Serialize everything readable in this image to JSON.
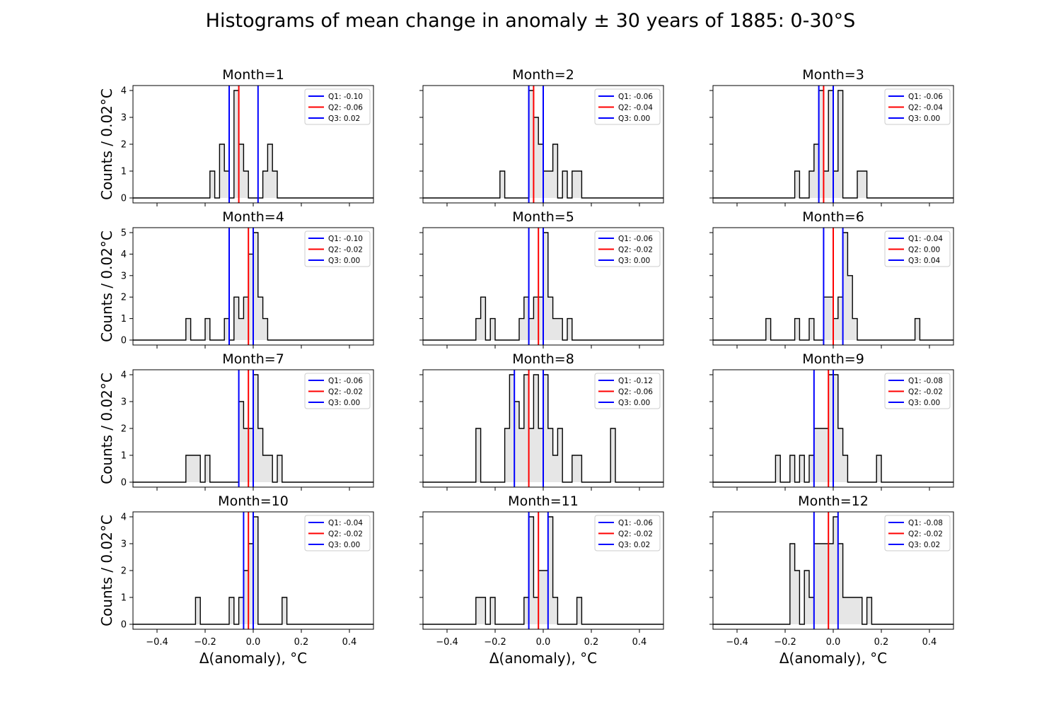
{
  "figure": {
    "title": "Histograms of mean change in anomaly ± 30 years of 1885: 0-30°S",
    "ylabel": "Counts / 0.02°C",
    "xlabel": "Δ(anomaly), °C"
  },
  "colors": {
    "quartile_outer": "#0000ff",
    "median": "#ff0000",
    "fill": "#e6e6e6",
    "step": "#000000"
  },
  "chart_data": [
    {
      "type": "histogram",
      "title": "Month=1",
      "xlim": [
        -0.5,
        0.5
      ],
      "ylim": [
        0,
        4
      ],
      "yticks": [
        0,
        1,
        2,
        3,
        4
      ],
      "xticks": [
        -0.4,
        -0.2,
        0.0,
        0.2,
        0.4
      ],
      "bin_width": 0.02,
      "bins": [
        [
          -0.18,
          1
        ],
        [
          -0.14,
          2
        ],
        [
          -0.12,
          1
        ],
        [
          -0.08,
          4
        ],
        [
          -0.06,
          2
        ],
        [
          -0.04,
          1
        ],
        [
          0.04,
          1
        ],
        [
          0.06,
          2
        ],
        [
          0.08,
          1
        ]
      ],
      "quartiles": {
        "Q1": -0.1,
        "Q2": -0.06,
        "Q3": 0.02
      },
      "legend": [
        "Q1: -0.10",
        "Q2: -0.06",
        "Q3: 0.02"
      ]
    },
    {
      "type": "histogram",
      "title": "Month=2",
      "xlim": [
        -0.5,
        0.5
      ],
      "ylim": [
        0,
        4
      ],
      "yticks": [
        0,
        1,
        2,
        3,
        4
      ],
      "xticks": [
        -0.4,
        -0.2,
        0.0,
        0.2,
        0.4
      ],
      "bin_width": 0.02,
      "bins": [
        [
          -0.18,
          1
        ],
        [
          -0.06,
          4
        ],
        [
          -0.04,
          3
        ],
        [
          -0.02,
          2
        ],
        [
          0.0,
          1
        ],
        [
          0.02,
          1
        ],
        [
          0.04,
          2
        ],
        [
          0.08,
          1
        ],
        [
          0.12,
          1
        ],
        [
          0.14,
          1
        ]
      ],
      "quartiles": {
        "Q1": -0.06,
        "Q2": -0.04,
        "Q3": 0.0
      },
      "legend": [
        "Q1: -0.06",
        "Q2: -0.04",
        "Q3: 0.00"
      ]
    },
    {
      "type": "histogram",
      "title": "Month=3",
      "xlim": [
        -0.5,
        0.5
      ],
      "ylim": [
        0,
        4
      ],
      "yticks": [
        0,
        1,
        2,
        3,
        4
      ],
      "xticks": [
        -0.4,
        -0.2,
        0.0,
        0.2,
        0.4
      ],
      "bin_width": 0.02,
      "bins": [
        [
          -0.16,
          1
        ],
        [
          -0.1,
          1
        ],
        [
          -0.08,
          2
        ],
        [
          -0.06,
          4
        ],
        [
          -0.04,
          1
        ],
        [
          -0.02,
          4
        ],
        [
          0.0,
          1
        ],
        [
          0.02,
          4
        ],
        [
          0.1,
          1
        ],
        [
          0.12,
          1
        ]
      ],
      "quartiles": {
        "Q1": -0.06,
        "Q2": -0.04,
        "Q3": 0.0
      },
      "legend": [
        "Q1: -0.06",
        "Q2: -0.04",
        "Q3: 0.00"
      ]
    },
    {
      "type": "histogram",
      "title": "Month=4",
      "xlim": [
        -0.5,
        0.5
      ],
      "ylim": [
        0,
        5
      ],
      "yticks": [
        0,
        1,
        2,
        3,
        4,
        5
      ],
      "xticks": [
        -0.4,
        -0.2,
        0.0,
        0.2,
        0.4
      ],
      "bin_width": 0.02,
      "bins": [
        [
          -0.28,
          1
        ],
        [
          -0.2,
          1
        ],
        [
          -0.12,
          1
        ],
        [
          -0.08,
          2
        ],
        [
          -0.06,
          1
        ],
        [
          -0.04,
          2
        ],
        [
          -0.02,
          4
        ],
        [
          0.0,
          5
        ],
        [
          0.02,
          2
        ],
        [
          0.04,
          1
        ]
      ],
      "quartiles": {
        "Q1": -0.1,
        "Q2": -0.02,
        "Q3": 0.0
      },
      "legend": [
        "Q1: -0.10",
        "Q2: -0.02",
        "Q3: 0.00"
      ]
    },
    {
      "type": "histogram",
      "title": "Month=5",
      "xlim": [
        -0.5,
        0.5
      ],
      "ylim": [
        0,
        5
      ],
      "yticks": [
        0,
        1,
        2,
        3,
        4,
        5
      ],
      "xticks": [
        -0.4,
        -0.2,
        0.0,
        0.2,
        0.4
      ],
      "bin_width": 0.02,
      "bins": [
        [
          -0.28,
          1
        ],
        [
          -0.26,
          2
        ],
        [
          -0.22,
          1
        ],
        [
          -0.1,
          1
        ],
        [
          -0.08,
          2
        ],
        [
          -0.06,
          1
        ],
        [
          -0.04,
          2
        ],
        [
          -0.02,
          2
        ],
        [
          0.0,
          5
        ],
        [
          0.02,
          2
        ],
        [
          0.04,
          1
        ],
        [
          0.06,
          1
        ],
        [
          0.1,
          1
        ]
      ],
      "quartiles": {
        "Q1": -0.06,
        "Q2": -0.02,
        "Q3": 0.0
      },
      "legend": [
        "Q1: -0.06",
        "Q2: -0.02",
        "Q3: 0.00"
      ]
    },
    {
      "type": "histogram",
      "title": "Month=6",
      "xlim": [
        -0.5,
        0.5
      ],
      "ylim": [
        0,
        5
      ],
      "yticks": [
        0,
        1,
        2,
        3,
        4,
        5
      ],
      "xticks": [
        -0.4,
        -0.2,
        0.0,
        0.2,
        0.4
      ],
      "bin_width": 0.02,
      "bins": [
        [
          -0.28,
          1
        ],
        [
          -0.16,
          1
        ],
        [
          -0.1,
          1
        ],
        [
          -0.04,
          2
        ],
        [
          -0.02,
          2
        ],
        [
          0.0,
          1
        ],
        [
          0.02,
          2
        ],
        [
          0.04,
          5
        ],
        [
          0.06,
          3
        ],
        [
          0.08,
          1
        ],
        [
          0.34,
          1
        ]
      ],
      "quartiles": {
        "Q1": -0.04,
        "Q2": 0.0,
        "Q3": 0.04
      },
      "legend": [
        "Q1: -0.04",
        "Q2: 0.00",
        "Q3: 0.04"
      ]
    },
    {
      "type": "histogram",
      "title": "Month=7",
      "xlim": [
        -0.5,
        0.5
      ],
      "ylim": [
        0,
        4
      ],
      "yticks": [
        0,
        1,
        2,
        3,
        4
      ],
      "xticks": [
        -0.4,
        -0.2,
        0.0,
        0.2,
        0.4
      ],
      "bin_width": 0.02,
      "bins": [
        [
          -0.28,
          1
        ],
        [
          -0.26,
          1
        ],
        [
          -0.24,
          1
        ],
        [
          -0.2,
          1
        ],
        [
          -0.06,
          3
        ],
        [
          -0.04,
          2
        ],
        [
          -0.02,
          2
        ],
        [
          0.0,
          4
        ],
        [
          0.02,
          2
        ],
        [
          0.04,
          1
        ],
        [
          0.06,
          1
        ],
        [
          0.1,
          1
        ]
      ],
      "quartiles": {
        "Q1": -0.06,
        "Q2": -0.02,
        "Q3": 0.0
      },
      "legend": [
        "Q1: -0.06",
        "Q2: -0.02",
        "Q3: 0.00"
      ]
    },
    {
      "type": "histogram",
      "title": "Month=8",
      "xlim": [
        -0.5,
        0.5
      ],
      "ylim": [
        0,
        4
      ],
      "yticks": [
        0,
        1,
        2,
        3,
        4
      ],
      "xticks": [
        -0.4,
        -0.2,
        0.0,
        0.2,
        0.4
      ],
      "bin_width": 0.02,
      "bins": [
        [
          -0.28,
          2
        ],
        [
          -0.16,
          2
        ],
        [
          -0.14,
          4
        ],
        [
          -0.12,
          3
        ],
        [
          -0.1,
          2
        ],
        [
          -0.08,
          4
        ],
        [
          -0.06,
          2
        ],
        [
          -0.04,
          4
        ],
        [
          -0.02,
          2
        ],
        [
          0.0,
          4
        ],
        [
          0.02,
          2
        ],
        [
          0.04,
          1
        ],
        [
          0.06,
          2
        ],
        [
          0.12,
          1
        ],
        [
          0.14,
          1
        ],
        [
          0.28,
          2
        ]
      ],
      "quartiles": {
        "Q1": -0.12,
        "Q2": -0.06,
        "Q3": 0.0
      },
      "legend": [
        "Q1: -0.12",
        "Q2: -0.06",
        "Q3: 0.00"
      ]
    },
    {
      "type": "histogram",
      "title": "Month=9",
      "xlim": [
        -0.5,
        0.5
      ],
      "ylim": [
        0,
        4
      ],
      "yticks": [
        0,
        1,
        2,
        3,
        4
      ],
      "xticks": [
        -0.4,
        -0.2,
        0.0,
        0.2,
        0.4
      ],
      "bin_width": 0.02,
      "bins": [
        [
          -0.24,
          1
        ],
        [
          -0.18,
          1
        ],
        [
          -0.14,
          1
        ],
        [
          -0.1,
          1
        ],
        [
          -0.08,
          2
        ],
        [
          -0.06,
          2
        ],
        [
          -0.04,
          2
        ],
        [
          -0.02,
          4
        ],
        [
          0.0,
          4
        ],
        [
          0.02,
          2
        ],
        [
          0.04,
          1
        ],
        [
          0.18,
          1
        ]
      ],
      "quartiles": {
        "Q1": -0.08,
        "Q2": -0.02,
        "Q3": 0.0
      },
      "legend": [
        "Q1: -0.08",
        "Q2: -0.02",
        "Q3: 0.00"
      ]
    },
    {
      "type": "histogram",
      "title": "Month=10",
      "xlim": [
        -0.5,
        0.5
      ],
      "ylim": [
        0,
        4
      ],
      "yticks": [
        0,
        1,
        2,
        3,
        4
      ],
      "xticks": [
        -0.4,
        -0.2,
        0.0,
        0.2,
        0.4
      ],
      "bin_width": 0.02,
      "bins": [
        [
          -0.24,
          1
        ],
        [
          -0.1,
          1
        ],
        [
          -0.06,
          1
        ],
        [
          -0.04,
          2
        ],
        [
          -0.02,
          3
        ],
        [
          0.0,
          4
        ],
        [
          0.12,
          1
        ]
      ],
      "quartiles": {
        "Q1": -0.04,
        "Q2": -0.02,
        "Q3": 0.0
      },
      "legend": [
        "Q1: -0.04",
        "Q2: -0.02",
        "Q3: 0.00"
      ]
    },
    {
      "type": "histogram",
      "title": "Month=11",
      "xlim": [
        -0.5,
        0.5
      ],
      "ylim": [
        0,
        4
      ],
      "yticks": [
        0,
        1,
        2,
        3,
        4
      ],
      "xticks": [
        -0.4,
        -0.2,
        0.0,
        0.2,
        0.4
      ],
      "bin_width": 0.02,
      "bins": [
        [
          -0.28,
          1
        ],
        [
          -0.26,
          1
        ],
        [
          -0.22,
          1
        ],
        [
          -0.08,
          1
        ],
        [
          -0.06,
          4
        ],
        [
          -0.04,
          1
        ],
        [
          -0.02,
          2
        ],
        [
          0.0,
          2
        ],
        [
          0.02,
          4
        ],
        [
          0.04,
          1
        ],
        [
          0.14,
          1
        ]
      ],
      "quartiles": {
        "Q1": -0.06,
        "Q2": -0.02,
        "Q3": 0.02
      },
      "legend": [
        "Q1: -0.06",
        "Q2: -0.02",
        "Q3: 0.02"
      ]
    },
    {
      "type": "histogram",
      "title": "Month=12",
      "xlim": [
        -0.5,
        0.5
      ],
      "ylim": [
        0,
        4
      ],
      "yticks": [
        0,
        1,
        2,
        3,
        4
      ],
      "xticks": [
        -0.4,
        -0.2,
        0.0,
        0.2,
        0.4
      ],
      "bin_width": 0.02,
      "bins": [
        [
          -0.18,
          3
        ],
        [
          -0.16,
          2
        ],
        [
          -0.12,
          2
        ],
        [
          -0.1,
          1
        ],
        [
          -0.08,
          3
        ],
        [
          -0.06,
          3
        ],
        [
          -0.04,
          3
        ],
        [
          -0.02,
          3
        ],
        [
          0.0,
          4
        ],
        [
          0.02,
          3
        ],
        [
          0.04,
          1
        ],
        [
          0.06,
          1
        ],
        [
          0.08,
          1
        ],
        [
          0.1,
          1
        ],
        [
          0.14,
          1
        ]
      ],
      "quartiles": {
        "Q1": -0.08,
        "Q2": -0.02,
        "Q3": 0.02
      },
      "legend": [
        "Q1: -0.08",
        "Q2: -0.02",
        "Q3: 0.02"
      ]
    }
  ]
}
